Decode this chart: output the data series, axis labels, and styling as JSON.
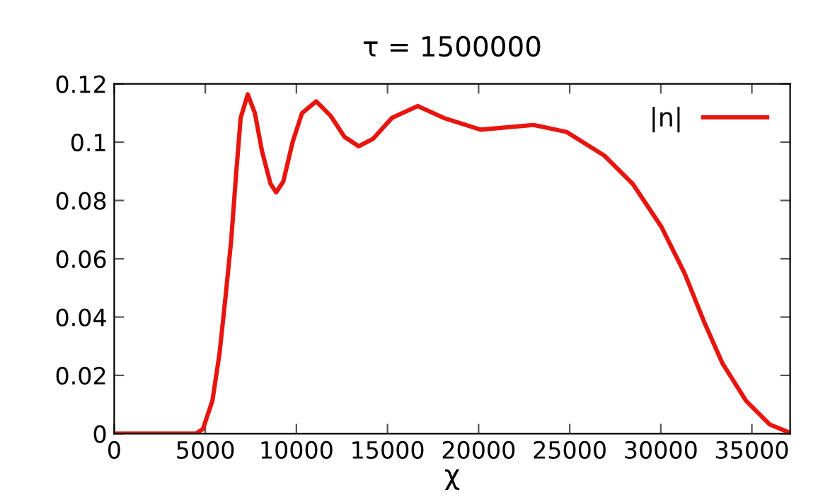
{
  "chart_data": {
    "type": "line",
    "title": "τ = 1500000",
    "xlabel": "χ",
    "xlim": [
      0,
      37100
    ],
    "ylim": [
      0,
      0.12
    ],
    "xticks": [
      0,
      5000,
      10000,
      15000,
      20000,
      25000,
      30000,
      35000
    ],
    "yticks": [
      0,
      0.02,
      0.04,
      0.06,
      0.08,
      {
        "value": 0.1,
        "label": "0.1"
      },
      0.12
    ],
    "grid": false,
    "legend": "top right",
    "marker": "none",
    "line_style": "solid",
    "series": [
      {
        "name": "|n|",
        "color": "#e8150f",
        "x": [
          0,
          2000,
          4480,
          4870,
          5390,
          5780,
          6110,
          6420,
          6690,
          6940,
          7330,
          7720,
          8110,
          8580,
          8890,
          9280,
          9800,
          10310,
          11090,
          11870,
          12640,
          13420,
          14200,
          15240,
          16660,
          18090,
          20110,
          23020,
          24830,
          26900,
          28460,
          30020,
          31310,
          32350,
          33380,
          34680,
          35970,
          37100
        ],
        "values": [
          0,
          0,
          0,
          0.0016,
          0.0113,
          0.0275,
          0.0469,
          0.0663,
          0.0889,
          0.1083,
          0.1164,
          0.11,
          0.097,
          0.0857,
          0.0828,
          0.0865,
          0.1002,
          0.11,
          0.114,
          0.1091,
          0.1018,
          0.0986,
          0.1011,
          0.1083,
          0.1124,
          0.1083,
          0.1043,
          0.1059,
          0.1035,
          0.0954,
          0.0857,
          0.0711,
          0.055,
          0.0388,
          0.0242,
          0.0113,
          0.0032,
          0.0003
        ]
      }
    ]
  }
}
